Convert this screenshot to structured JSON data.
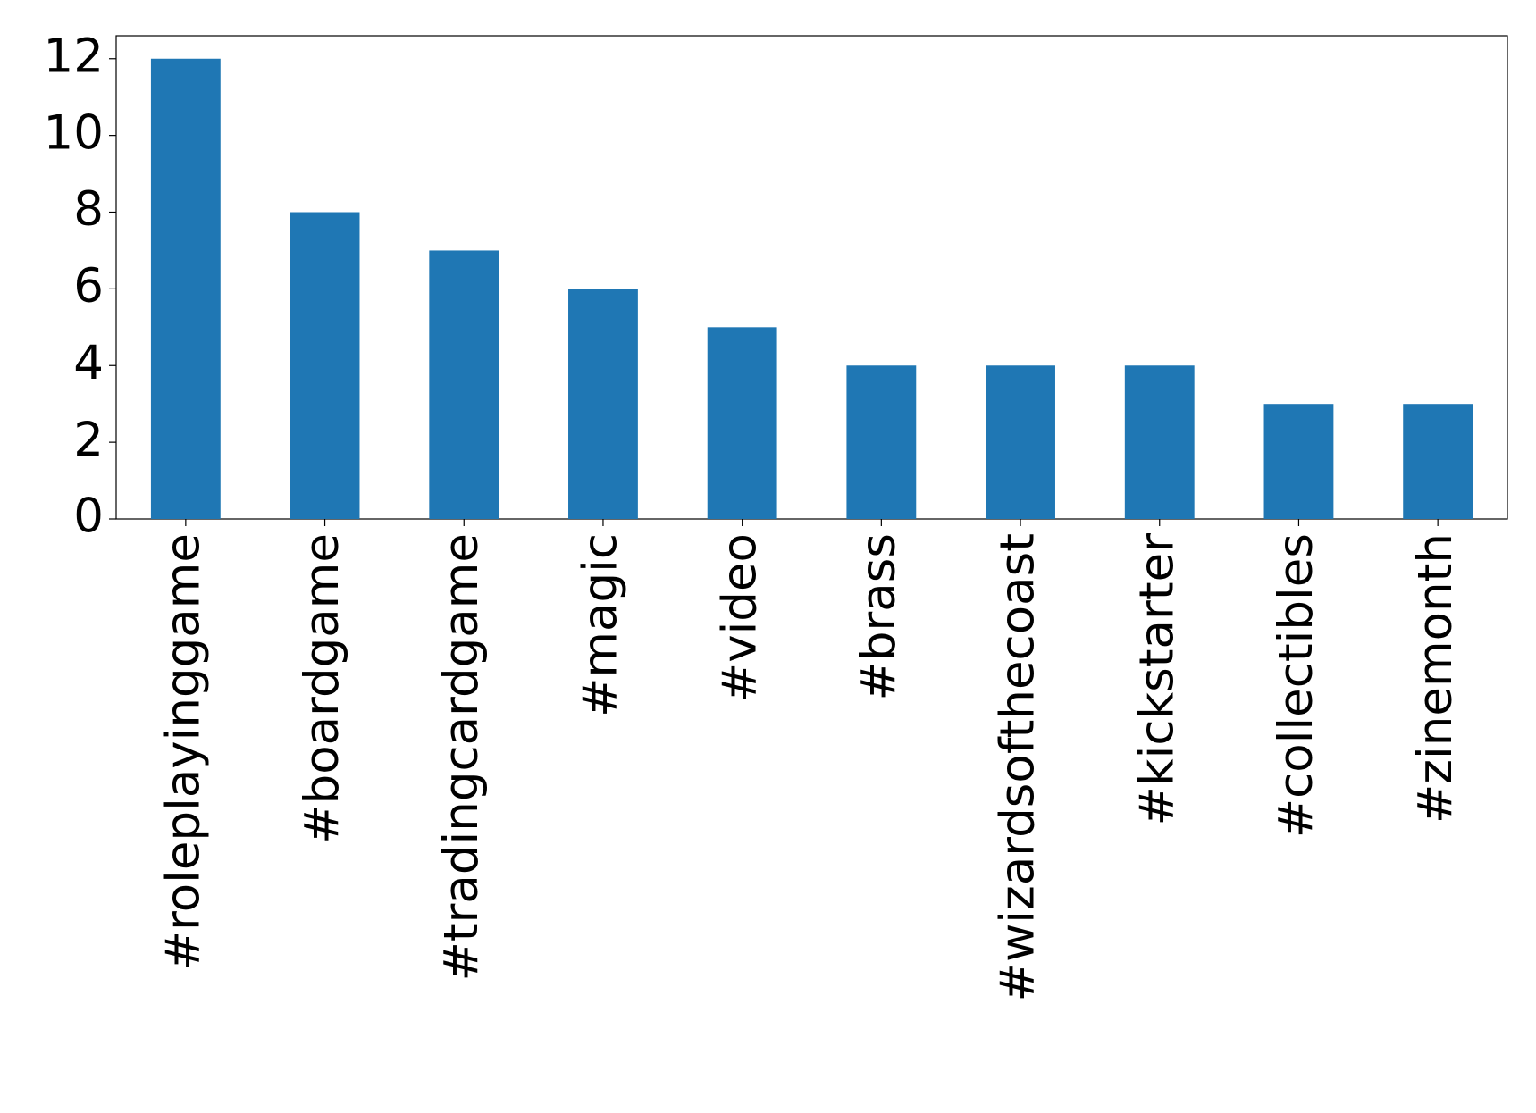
{
  "chart_data": {
    "type": "bar",
    "categories": [
      "#roleplayinggame",
      "#boardgame",
      "#tradingcardgame",
      "#magic",
      "#video",
      "#brass",
      "#wizardsofthecoast",
      "#kickstarter",
      "#collectibles",
      "#zinemonth"
    ],
    "values": [
      12,
      8,
      7,
      6,
      5,
      4,
      4,
      4,
      3,
      3
    ],
    "color": "#1f77b4",
    "ylim": [
      0,
      12.6
    ],
    "yticks": [
      0,
      2,
      4,
      6,
      8,
      10,
      12
    ],
    "grid": false
  }
}
